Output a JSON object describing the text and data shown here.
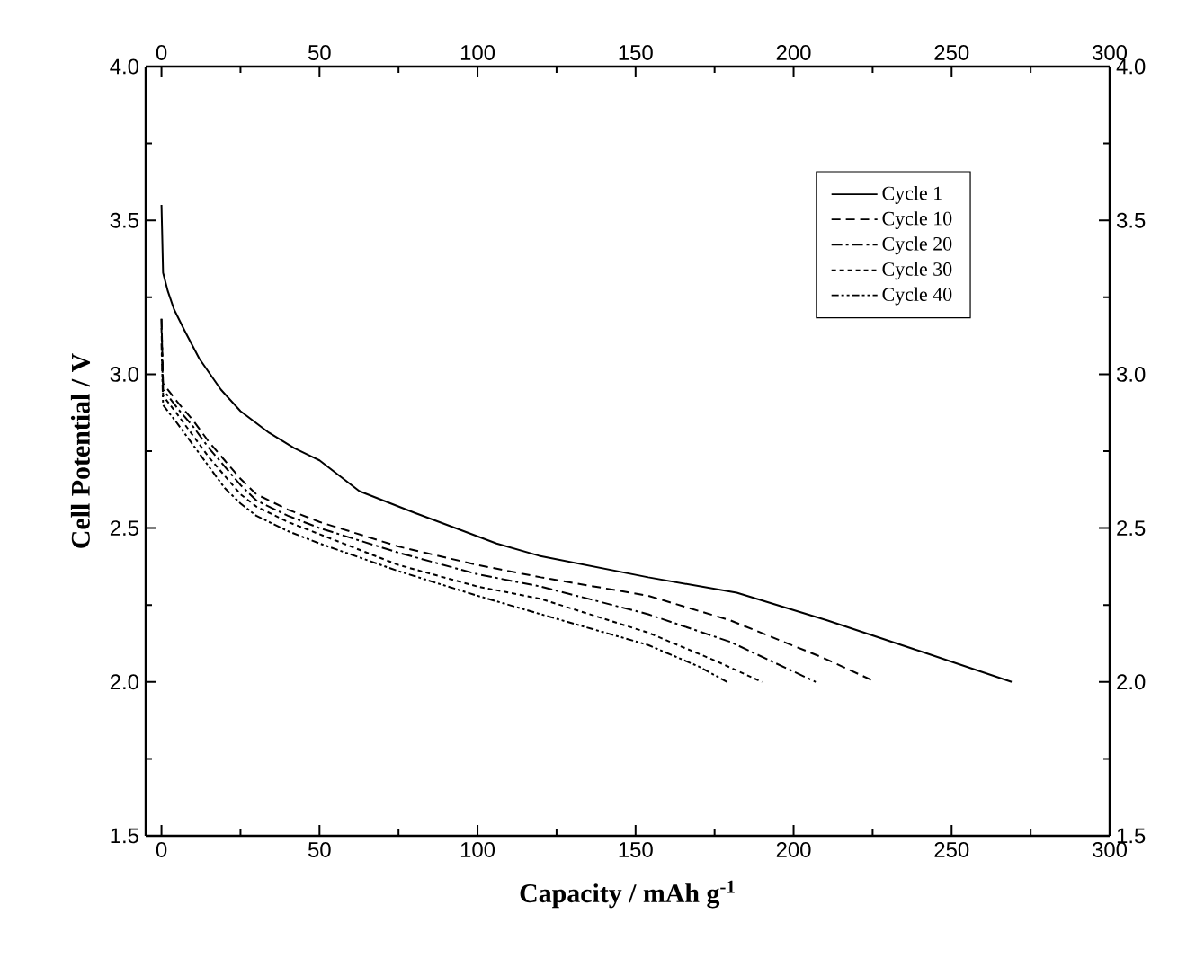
{
  "chart_data": {
    "type": "line",
    "xlabel": "Capacity / mAh g$^{-1}$",
    "ylabel": "Cell Potential / V",
    "xlim": [
      -5,
      300
    ],
    "xticks": [
      0,
      50,
      100,
      150,
      200,
      250,
      300
    ],
    "ylim": [
      1.5,
      4.0
    ],
    "yticks": [
      1.5,
      {
        "value": 2,
        "label": "2.0"
      },
      2.5,
      {
        "value": 3,
        "label": "3.0"
      },
      3.5,
      {
        "value": 4,
        "label": "4.0"
      }
    ],
    "x2lim": [
      -5,
      300
    ],
    "x2ticks": [
      0,
      50,
      100,
      150,
      200,
      250,
      300
    ],
    "y2lim": [
      1.5,
      4.0
    ],
    "y2ticks": [
      1.5,
      {
        "value": 2,
        "label": "2.0"
      },
      2.5,
      {
        "value": 3,
        "label": "3.0"
      },
      3.5,
      {
        "value": 4,
        "label": "4.0"
      }
    ],
    "legend": "top right",
    "grid": false,
    "marker": "none",
    "series": [
      {
        "name": "Cycle 1",
        "color": "#000000",
        "line_style": "solid",
        "x": [
          0,
          0.5,
          2,
          4,
          7.4,
          12,
          18.8,
          25,
          34,
          42,
          50,
          62.6,
          80,
          106,
          119.5,
          154,
          182,
          210.6,
          240,
          269
        ],
        "values": [
          3.55,
          3.33,
          3.27,
          3.21,
          3.14,
          3.05,
          2.95,
          2.88,
          2.81,
          2.76,
          2.72,
          2.62,
          2.55,
          2.45,
          2.41,
          2.34,
          2.29,
          2.2,
          2.1,
          2.0
        ]
      },
      {
        "name": "Cycle 10",
        "color": "#000000",
        "line_style": "dashed",
        "x": [
          0,
          0.5,
          5,
          10,
          15,
          20,
          25,
          30,
          40,
          50,
          75,
          100,
          120,
          154,
          180,
          209,
          226
        ],
        "values": [
          3.18,
          2.97,
          2.91,
          2.85,
          2.78,
          2.72,
          2.66,
          2.61,
          2.56,
          2.52,
          2.44,
          2.38,
          2.34,
          2.28,
          2.2,
          2.08,
          2.0
        ]
      },
      {
        "name": "Cycle 20",
        "color": "#000000",
        "line_style": "dashdot",
        "x": [
          0,
          0.5,
          5,
          10,
          15,
          20,
          25,
          30,
          40,
          50,
          75,
          100,
          120,
          154,
          180,
          207
        ],
        "values": [
          3.18,
          2.95,
          2.89,
          2.83,
          2.76,
          2.7,
          2.64,
          2.59,
          2.54,
          2.5,
          2.42,
          2.35,
          2.31,
          2.22,
          2.13,
          2.0
        ]
      },
      {
        "name": "Cycle 30",
        "color": "#000000",
        "line_style": "dotted",
        "x": [
          0,
          0.5,
          5,
          10,
          15,
          20,
          25,
          30,
          40,
          50,
          75,
          100,
          120,
          154,
          175,
          190
        ],
        "values": [
          3.15,
          2.93,
          2.87,
          2.8,
          2.73,
          2.67,
          2.61,
          2.57,
          2.52,
          2.48,
          2.38,
          2.31,
          2.27,
          2.16,
          2.07,
          2.0
        ]
      },
      {
        "name": "Cycle 40",
        "color": "#000000",
        "line_style": "dashdotdot",
        "x": [
          0,
          0.5,
          5,
          10,
          15,
          20,
          25,
          30,
          40,
          50,
          75,
          100,
          120,
          154,
          170,
          179
        ],
        "values": [
          3.1,
          2.9,
          2.84,
          2.77,
          2.7,
          2.63,
          2.58,
          2.54,
          2.49,
          2.45,
          2.36,
          2.28,
          2.22,
          2.12,
          2.05,
          2.0
        ]
      }
    ]
  }
}
